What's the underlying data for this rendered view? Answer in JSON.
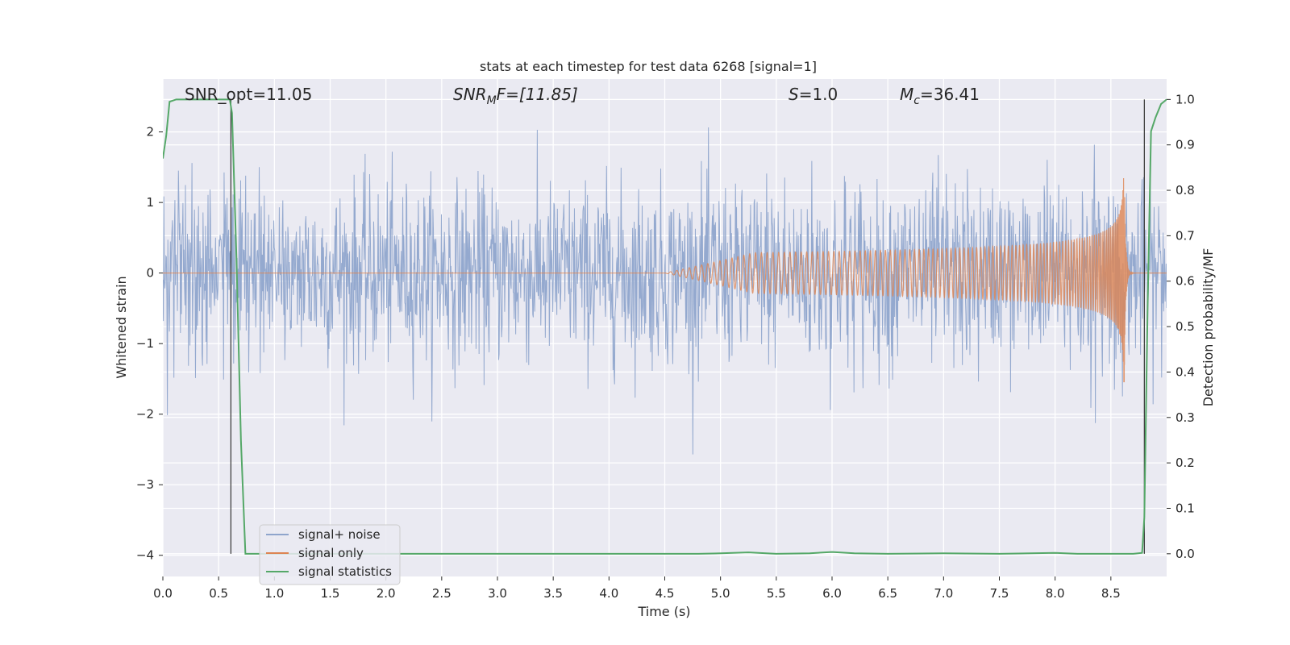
{
  "chart_data": {
    "type": "line",
    "title": "stats at each timestep for test data 6268 [signal=1]",
    "xlabel": "Time (s)",
    "ylabel_left": "Whitened strain",
    "ylabel_right": "Detection probability/MF",
    "xlim": [
      0.0,
      9.0
    ],
    "ylim_left": [
      -4.3,
      2.75
    ],
    "ylim_right": [
      -0.05,
      1.045
    ],
    "grid": true,
    "legend_position": "lower-left",
    "x_ticks": [
      "0.0",
      "0.5",
      "1.0",
      "1.5",
      "2.0",
      "2.5",
      "3.0",
      "3.5",
      "4.0",
      "4.5",
      "5.0",
      "5.5",
      "6.0",
      "6.5",
      "7.0",
      "7.5",
      "8.0",
      "8.5"
    ],
    "x_tick_values": [
      0.0,
      0.5,
      1.0,
      1.5,
      2.0,
      2.5,
      3.0,
      3.5,
      4.0,
      4.5,
      5.0,
      5.5,
      6.0,
      6.5,
      7.0,
      7.5,
      8.0,
      8.5
    ],
    "y_left_ticks": [
      "−4",
      "−3",
      "−2",
      "−1",
      "0",
      "1",
      "2"
    ],
    "y_left_tick_values": [
      -4,
      -3,
      -2,
      -1,
      0,
      1,
      2
    ],
    "y_right_ticks": [
      "0.0",
      "0.1",
      "0.2",
      "0.3",
      "0.4",
      "0.5",
      "0.6",
      "0.7",
      "0.8",
      "0.9",
      "1.0"
    ],
    "y_right_tick_values": [
      0.0,
      0.1,
      0.2,
      0.3,
      0.4,
      0.5,
      0.6,
      0.7,
      0.8,
      0.9,
      1.0
    ],
    "annotations": {
      "snr_opt": "SNR_opt=11.05",
      "snr_mf_base": "SNR",
      "snr_mf_sub": "M",
      "snr_mf_rest": "F=[11.85]",
      "s_label": "S",
      "s_value": "=1.0",
      "mc_base": "M",
      "mc_sub": "c",
      "mc_value": "=36.41"
    },
    "vertical_markers_x": [
      0.61,
      8.8
    ],
    "series": [
      {
        "name": "signal+ noise",
        "color": "#8fa5cc",
        "noise_std": 0.62,
        "sample_spacing": 0.0045,
        "x_range": [
          0.0,
          9.0
        ]
      },
      {
        "name": "signal only",
        "color": "#dd8452",
        "chirp_start": 4.5,
        "merger_time": 8.62,
        "peak_amplitude": 1.55,
        "x_range": [
          0.0,
          9.0
        ]
      },
      {
        "name": "signal statistics",
        "color": "#55a868",
        "axis": "right",
        "points": [
          [
            0.0,
            0.87
          ],
          [
            0.03,
            0.92
          ],
          [
            0.06,
            0.995
          ],
          [
            0.12,
            1.0
          ],
          [
            0.3,
            1.0
          ],
          [
            0.5,
            1.0
          ],
          [
            0.6,
            1.0
          ],
          [
            0.62,
            0.97
          ],
          [
            0.66,
            0.65
          ],
          [
            0.7,
            0.25
          ],
          [
            0.74,
            0.0
          ],
          [
            1.0,
            0.0
          ],
          [
            2.0,
            0.0
          ],
          [
            3.0,
            0.0
          ],
          [
            4.0,
            0.0
          ],
          [
            4.8,
            0.0
          ],
          [
            5.0,
            0.001
          ],
          [
            5.25,
            0.003
          ],
          [
            5.5,
            0.0
          ],
          [
            5.8,
            0.001
          ],
          [
            6.0,
            0.004
          ],
          [
            6.2,
            0.001
          ],
          [
            6.5,
            0.0
          ],
          [
            7.0,
            0.001
          ],
          [
            7.5,
            0.0
          ],
          [
            8.0,
            0.002
          ],
          [
            8.2,
            0.0
          ],
          [
            8.7,
            0.0
          ],
          [
            8.78,
            0.002
          ],
          [
            8.8,
            0.08
          ],
          [
            8.83,
            0.55
          ],
          [
            8.86,
            0.93
          ],
          [
            8.9,
            0.96
          ],
          [
            8.95,
            0.99
          ],
          [
            9.0,
            1.0
          ]
        ]
      }
    ]
  }
}
